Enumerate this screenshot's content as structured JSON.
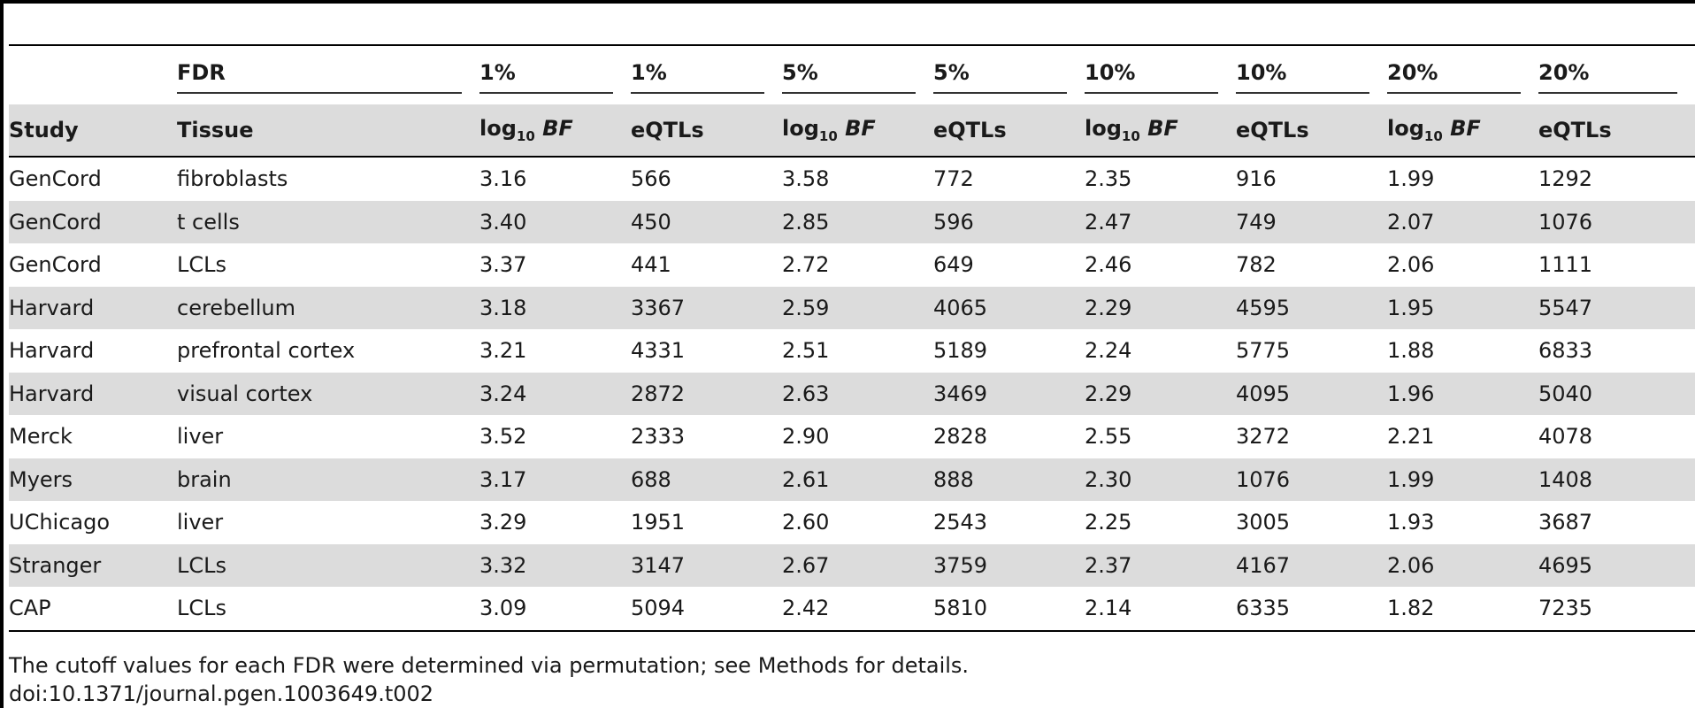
{
  "table": {
    "fdr_label": "FDR",
    "fdr_levels": [
      "1%",
      "1%",
      "5%",
      "5%",
      "10%",
      "10%",
      "20%",
      "20%"
    ],
    "columns": {
      "study": "Study",
      "tissue": "Tissue",
      "log_prefix": "log",
      "log_sub": "10",
      "log_bf": "BF",
      "eqtls": "eQTLs"
    },
    "rows": [
      {
        "study": "GenCord",
        "tissue": "fibroblasts",
        "values": [
          "3.16",
          "566",
          "3.58",
          "772",
          "2.35",
          "916",
          "1.99",
          "1292"
        ]
      },
      {
        "study": "GenCord",
        "tissue": "t cells",
        "values": [
          "3.40",
          "450",
          "2.85",
          "596",
          "2.47",
          "749",
          "2.07",
          "1076"
        ]
      },
      {
        "study": "GenCord",
        "tissue": "LCLs",
        "values": [
          "3.37",
          "441",
          "2.72",
          "649",
          "2.46",
          "782",
          "2.06",
          "1111"
        ]
      },
      {
        "study": "Harvard",
        "tissue": "cerebellum",
        "values": [
          "3.18",
          "3367",
          "2.59",
          "4065",
          "2.29",
          "4595",
          "1.95",
          "5547"
        ]
      },
      {
        "study": "Harvard",
        "tissue": "prefrontal cortex",
        "values": [
          "3.21",
          "4331",
          "2.51",
          "5189",
          "2.24",
          "5775",
          "1.88",
          "6833"
        ]
      },
      {
        "study": "Harvard",
        "tissue": "visual cortex",
        "values": [
          "3.24",
          "2872",
          "2.63",
          "3469",
          "2.29",
          "4095",
          "1.96",
          "5040"
        ]
      },
      {
        "study": "Merck",
        "tissue": "liver",
        "values": [
          "3.52",
          "2333",
          "2.90",
          "2828",
          "2.55",
          "3272",
          "2.21",
          "4078"
        ]
      },
      {
        "study": "Myers",
        "tissue": "brain",
        "values": [
          "3.17",
          "688",
          "2.61",
          "888",
          "2.30",
          "1076",
          "1.99",
          "1408"
        ]
      },
      {
        "study": "UChicago",
        "tissue": "liver",
        "values": [
          "3.29",
          "1951",
          "2.60",
          "2543",
          "2.25",
          "3005",
          "1.93",
          "3687"
        ]
      },
      {
        "study": "Stranger",
        "tissue": "LCLs",
        "values": [
          "3.32",
          "3147",
          "2.67",
          "3759",
          "2.37",
          "4167",
          "2.06",
          "4695"
        ]
      },
      {
        "study": "CAP",
        "tissue": "LCLs",
        "values": [
          "3.09",
          "5094",
          "2.42",
          "5810",
          "2.14",
          "6335",
          "1.82",
          "7235"
        ]
      }
    ]
  },
  "footnote": "The cutoff values for each FDR were determined via permutation; see Methods for details.",
  "doi": "doi:10.1371/journal.pgen.1003649.t002"
}
